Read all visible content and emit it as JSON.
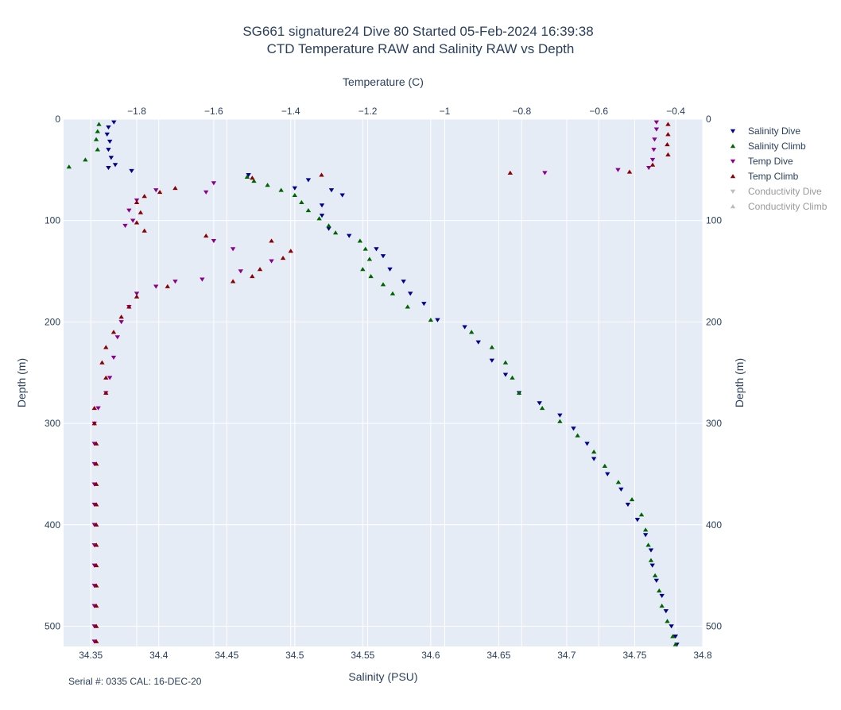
{
  "chart_data": {
    "type": "scatter",
    "title": "SG661 signature24 Dive 80 Started 05-Feb-2024 16:39:38",
    "subtitle": "CTD Temperature RAW and Salinity RAW vs Depth",
    "xlabel": "Salinity (PSU)",
    "x2label": "Temperature (C)",
    "ylabel": "Depth (m)",
    "y2label": "Depth (m)",
    "xlim": [
      34.33,
      34.8
    ],
    "x2lim": [
      -1.99,
      -0.33
    ],
    "ylim": [
      520,
      0
    ],
    "xticks": [
      "34.35",
      "34.4",
      "34.45",
      "34.5",
      "34.55",
      "34.6",
      "34.65",
      "34.7",
      "34.75",
      "34.8"
    ],
    "x2ticks": [
      "−1.8",
      "−1.6",
      "−1.4",
      "−1.2",
      "−1",
      "−0.8",
      "−0.6",
      "−0.4"
    ],
    "yticks": [
      "0",
      "100",
      "200",
      "300",
      "400",
      "500"
    ],
    "grid": true,
    "legend_position": "right",
    "plot_bg": "#e5ecf6",
    "annotation": "Serial #: 0335  CAL: 16-DEC-20",
    "series": [
      {
        "name": "Salinity Dive",
        "axis": "salinity",
        "marker": "triangle-down",
        "color": "#00008b",
        "visible": true,
        "points": [
          [
            34.367,
            3
          ],
          [
            34.363,
            8
          ],
          [
            34.362,
            15
          ],
          [
            34.364,
            22
          ],
          [
            34.363,
            30
          ],
          [
            34.365,
            38
          ],
          [
            34.368,
            45
          ],
          [
            34.363,
            48
          ],
          [
            34.38,
            51
          ],
          [
            34.466,
            55
          ],
          [
            34.51,
            60
          ],
          [
            34.5,
            68
          ],
          [
            34.527,
            70
          ],
          [
            34.535,
            75
          ],
          [
            34.52,
            85
          ],
          [
            34.52,
            95
          ],
          [
            34.525,
            108
          ],
          [
            34.54,
            115
          ],
          [
            34.56,
            128
          ],
          [
            34.565,
            135
          ],
          [
            34.57,
            148
          ],
          [
            34.58,
            160
          ],
          [
            34.585,
            172
          ],
          [
            34.595,
            182
          ],
          [
            34.605,
            198
          ],
          [
            34.625,
            205
          ],
          [
            34.635,
            220
          ],
          [
            34.645,
            238
          ],
          [
            34.655,
            252
          ],
          [
            34.665,
            270
          ],
          [
            34.68,
            280
          ],
          [
            34.695,
            292
          ],
          [
            34.705,
            305
          ],
          [
            34.715,
            320
          ],
          [
            34.72,
            335
          ],
          [
            34.73,
            350
          ],
          [
            34.74,
            365
          ],
          [
            34.745,
            380
          ],
          [
            34.752,
            395
          ],
          [
            34.758,
            410
          ],
          [
            34.762,
            425
          ],
          [
            34.763,
            440
          ],
          [
            34.766,
            455
          ],
          [
            34.77,
            470
          ],
          [
            34.773,
            485
          ],
          [
            34.777,
            500
          ],
          [
            34.78,
            510
          ],
          [
            34.781,
            518
          ]
        ]
      },
      {
        "name": "Salinity Climb",
        "axis": "salinity",
        "marker": "triangle-up",
        "color": "#006400",
        "visible": true,
        "points": [
          [
            34.334,
            47
          ],
          [
            34.346,
            40
          ],
          [
            34.355,
            30
          ],
          [
            34.354,
            20
          ],
          [
            34.355,
            12
          ],
          [
            34.356,
            5
          ],
          [
            34.465,
            57
          ],
          [
            34.47,
            61
          ],
          [
            34.48,
            65
          ],
          [
            34.49,
            70
          ],
          [
            34.5,
            75
          ],
          [
            34.505,
            82
          ],
          [
            34.51,
            90
          ],
          [
            34.518,
            98
          ],
          [
            34.525,
            105
          ],
          [
            34.53,
            112
          ],
          [
            34.548,
            120
          ],
          [
            34.552,
            128
          ],
          [
            34.555,
            138
          ],
          [
            34.55,
            148
          ],
          [
            34.556,
            155
          ],
          [
            34.565,
            163
          ],
          [
            34.572,
            172
          ],
          [
            34.583,
            185
          ],
          [
            34.6,
            198
          ],
          [
            34.63,
            210
          ],
          [
            34.645,
            225
          ],
          [
            34.655,
            240
          ],
          [
            34.66,
            255
          ],
          [
            34.665,
            270
          ],
          [
            34.682,
            285
          ],
          [
            34.695,
            298
          ],
          [
            34.708,
            312
          ],
          [
            34.72,
            328
          ],
          [
            34.728,
            342
          ],
          [
            34.738,
            358
          ],
          [
            34.748,
            375
          ],
          [
            34.755,
            390
          ],
          [
            34.758,
            405
          ],
          [
            34.76,
            420
          ],
          [
            34.762,
            435
          ],
          [
            34.765,
            450
          ],
          [
            34.768,
            465
          ],
          [
            34.77,
            480
          ],
          [
            34.774,
            495
          ],
          [
            34.778,
            510
          ],
          [
            34.78,
            518
          ]
        ]
      },
      {
        "name": "Temp Dive",
        "axis": "temperature",
        "marker": "triangle-down",
        "color": "#8b008b",
        "visible": true,
        "points": [
          [
            -0.45,
            3
          ],
          [
            -0.45,
            10
          ],
          [
            -0.455,
            20
          ],
          [
            -0.457,
            30
          ],
          [
            -0.46,
            40
          ],
          [
            -0.47,
            48
          ],
          [
            -0.74,
            53
          ],
          [
            -0.55,
            50
          ],
          [
            -1.6,
            63
          ],
          [
            -1.62,
            72
          ],
          [
            -1.75,
            70
          ],
          [
            -1.8,
            80
          ],
          [
            -1.82,
            90
          ],
          [
            -1.81,
            100
          ],
          [
            -1.83,
            105
          ],
          [
            -1.6,
            120
          ],
          [
            -1.55,
            128
          ],
          [
            -1.45,
            140
          ],
          [
            -1.53,
            150
          ],
          [
            -1.63,
            158
          ],
          [
            -1.7,
            160
          ],
          [
            -1.75,
            165
          ],
          [
            -1.8,
            172
          ],
          [
            -1.82,
            185
          ],
          [
            -1.84,
            200
          ],
          [
            -1.85,
            215
          ],
          [
            -1.86,
            235
          ],
          [
            -1.87,
            255
          ],
          [
            -1.88,
            270
          ],
          [
            -1.9,
            285
          ],
          [
            -1.91,
            300
          ],
          [
            -1.91,
            320
          ],
          [
            -1.91,
            340
          ],
          [
            -1.91,
            360
          ],
          [
            -1.91,
            380
          ],
          [
            -1.91,
            400
          ],
          [
            -1.91,
            420
          ],
          [
            -1.91,
            440
          ],
          [
            -1.91,
            460
          ],
          [
            -1.91,
            480
          ],
          [
            -1.91,
            500
          ],
          [
            -1.91,
            515
          ]
        ]
      },
      {
        "name": "Temp Climb",
        "axis": "temperature",
        "marker": "triangle-up",
        "color": "#8b0000",
        "visible": true,
        "points": [
          [
            -0.42,
            5
          ],
          [
            -0.42,
            15
          ],
          [
            -0.422,
            25
          ],
          [
            -0.42,
            35
          ],
          [
            -0.46,
            45
          ],
          [
            -0.52,
            52
          ],
          [
            -0.83,
            53
          ],
          [
            -1.32,
            55
          ],
          [
            -1.5,
            58
          ],
          [
            -1.7,
            68
          ],
          [
            -1.74,
            72
          ],
          [
            -1.78,
            76
          ],
          [
            -1.8,
            82
          ],
          [
            -1.79,
            92
          ],
          [
            -1.8,
            102
          ],
          [
            -1.78,
            110
          ],
          [
            -1.62,
            115
          ],
          [
            -1.45,
            120
          ],
          [
            -1.4,
            130
          ],
          [
            -1.42,
            137
          ],
          [
            -1.48,
            148
          ],
          [
            -1.5,
            155
          ],
          [
            -1.55,
            160
          ],
          [
            -1.72,
            165
          ],
          [
            -1.8,
            175
          ],
          [
            -1.82,
            185
          ],
          [
            -1.84,
            195
          ],
          [
            -1.86,
            210
          ],
          [
            -1.88,
            225
          ],
          [
            -1.89,
            240
          ],
          [
            -1.88,
            255
          ],
          [
            -1.88,
            270
          ],
          [
            -1.91,
            285
          ],
          [
            -1.91,
            300
          ],
          [
            -1.905,
            320
          ],
          [
            -1.905,
            340
          ],
          [
            -1.905,
            360
          ],
          [
            -1.905,
            380
          ],
          [
            -1.905,
            400
          ],
          [
            -1.905,
            420
          ],
          [
            -1.905,
            440
          ],
          [
            -1.905,
            460
          ],
          [
            -1.905,
            480
          ],
          [
            -1.905,
            500
          ],
          [
            -1.905,
            515
          ]
        ]
      },
      {
        "name": "Conductivity Dive",
        "axis": "temperature",
        "marker": "triangle-down",
        "color": "#bdbdbd",
        "visible": false,
        "points": []
      },
      {
        "name": "Conductivity Climb",
        "axis": "temperature",
        "marker": "triangle-up",
        "color": "#bdbdbd",
        "visible": false,
        "points": []
      }
    ]
  }
}
